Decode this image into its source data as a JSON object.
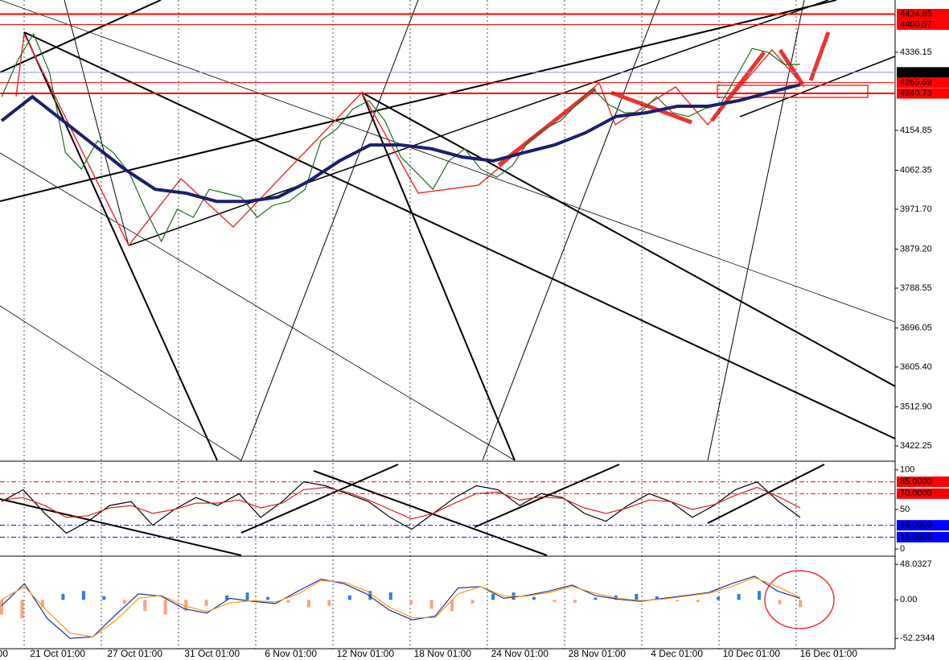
{
  "chart_data": [
    {
      "type": "line",
      "ylim": [
        3388.6,
        4457.6
      ],
      "yticks": [
        4336.15,
        4154.85,
        4062.35,
        {
          "value": 3971.7,
          "label": "3971.70"
        },
        {
          "value": 3879.2,
          "label": "3879.20"
        },
        3788.55,
        3696.05,
        {
          "value": 3605.4,
          "label": "3605.40"
        },
        {
          "value": 3512.9,
          "label": "3512.90"
        },
        3422.25
      ],
      "levels": [
        {
          "value": 4424.85,
          "color": "#ff0000",
          "line_color": "#ff0000",
          "width": 2
        },
        {
          "value": 4400.57,
          "color": "#ff0000",
          "line_color": "#ff0000",
          "width": 1
        },
        {
          "value": 4289.56,
          "color": "#000000",
          "line_color": "#7f95d8",
          "width": 1
        },
        {
          "value": 4265.69,
          "color": "#ff0000",
          "line_color": "#ff0000",
          "width": 1
        },
        {
          "value": 4240.73,
          "color": "#ff0000",
          "line_color": "#ff0000",
          "width": 2
        }
      ],
      "series": [
        {
          "color": "#1f6e1f",
          "values": [
            4233,
            4317,
            4379,
            4289,
            4103,
            4065,
            4131,
            4103,
            4056,
            3972,
            3897,
            3972,
            3953,
            4018,
            4009,
            4000,
            3953,
            3981,
            3990,
            4018,
            4131,
            4159,
            4205,
            4224,
            4177,
            4093,
            4056,
            4018,
            4084,
            4112,
            4065,
            4046,
            4074,
            4131,
            4159,
            4177,
            4215,
            4252,
            4215,
            4196,
            4196,
            4233,
            4196,
            4187,
            4205,
            4215,
            4280,
            4345,
            4336,
            4308,
            4308
          ]
        },
        {
          "color": "#1b1f6b",
          "values": [
            4177,
            4233,
            4177,
            4121,
            4065,
            4018,
            4009,
            3990,
            3990,
            4000,
            4037,
            4084,
            4121,
            4121,
            4112,
            4093,
            4084,
            4103,
            4121,
            4149,
            4187,
            4196,
            4211,
            4211,
            4224,
            4243,
            4261
          ]
        }
      ]
    },
    {
      "type": "line",
      "ylim": [
        -8,
        110
      ],
      "yticks": [
        100,
        50,
        0
      ],
      "levels": [
        {
          "value": 85,
          "label": "85.0000",
          "color": "#ff0000"
        },
        {
          "value": 70,
          "label": "70.0000",
          "color": "#ff0000"
        },
        {
          "value": 30,
          "label": "30.0000",
          "color": "#0000ff"
        },
        {
          "value": 15,
          "label": "15.0000",
          "color": "#0000ff"
        }
      ],
      "series": [
        {
          "color": "#000000",
          "values": [
            60,
            75,
            45,
            20,
            35,
            55,
            60,
            30,
            50,
            65,
            55,
            70,
            40,
            60,
            85,
            80,
            70,
            60,
            40,
            25,
            45,
            65,
            80,
            75,
            55,
            70,
            65,
            45,
            35,
            55,
            70,
            60,
            40,
            55,
            75,
            85,
            60,
            40
          ]
        },
        {
          "color": "#d02020",
          "values": [
            62,
            65,
            55,
            40,
            42,
            52,
            55,
            45,
            50,
            58,
            58,
            62,
            52,
            58,
            75,
            78,
            72,
            62,
            50,
            38,
            45,
            58,
            70,
            72,
            62,
            66,
            64,
            52,
            45,
            52,
            62,
            60,
            50,
            56,
            68,
            78,
            66,
            52
          ]
        }
      ]
    },
    {
      "type": "macd",
      "ylim": [
        -65,
        58
      ],
      "yticks": [
        48.0327,
        {
          "value": 0,
          "label": "0.00"
        },
        -52.2344
      ],
      "histogram": {
        "up_color": "#2f7fd8",
        "down_color": "#f4a582",
        "values": [
          -20,
          -25,
          -10,
          8,
          12,
          5,
          -5,
          -15,
          -20,
          -15,
          -8,
          6,
          10,
          4,
          -4,
          -10,
          -8,
          6,
          12,
          10,
          -6,
          -12,
          -15,
          -5,
          8,
          10,
          4,
          -3,
          -4,
          3,
          6,
          8,
          5,
          -2,
          -3,
          4,
          8,
          12,
          -6,
          -10
        ]
      },
      "series": [
        {
          "color": "#1f2fa8",
          "values": [
            -8,
            22,
            -25,
            -52,
            -50,
            -20,
            8,
            5,
            -12,
            -18,
            2,
            -2,
            -5,
            12,
            28,
            22,
            8,
            -14,
            -27,
            -22,
            16,
            18,
            2,
            6,
            12,
            20,
            6,
            1,
            -2,
            2,
            6,
            10,
            22,
            32,
            12,
            2
          ]
        },
        {
          "color": "#f39c12",
          "values": [
            0,
            18,
            -15,
            -45,
            -50,
            -28,
            2,
            6,
            -8,
            -16,
            -4,
            -1,
            -3,
            8,
            26,
            24,
            12,
            -10,
            -24,
            -24,
            8,
            18,
            5,
            5,
            10,
            18,
            9,
            2,
            -1,
            1,
            5,
            9,
            18,
            30,
            18,
            3
          ]
        }
      ],
      "time_labels": [
        "00",
        "21 Oct 01:00",
        "27 Oct 01:00",
        "31 Oct 01:00",
        "6 Nov 01:00",
        "12 Nov 01:00",
        "18 Nov 01:00",
        "24 Nov 01:00",
        "28 Nov 01:00",
        "4 Dec 01:00",
        "10 Dec 01:00",
        "16 Dec 01:00"
      ]
    }
  ]
}
